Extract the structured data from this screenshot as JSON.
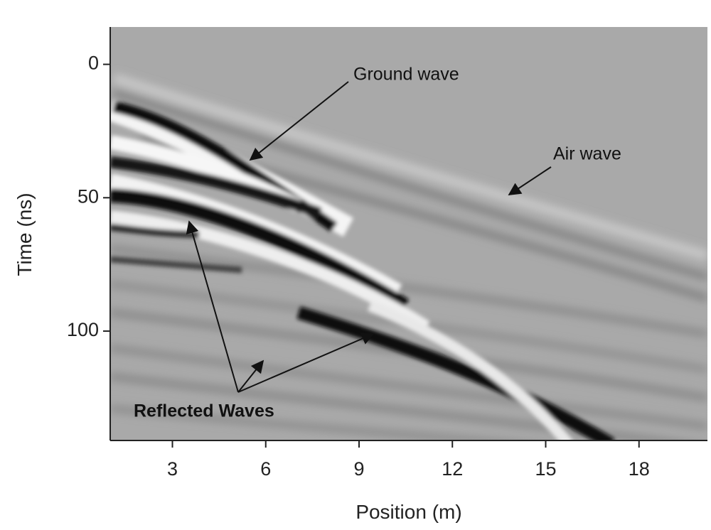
{
  "chart_data": {
    "type": "radargram",
    "xlabel": "Position (m)",
    "ylabel": "Time (ns)",
    "xlim": [
      1,
      20.2
    ],
    "xticks": [
      3,
      6,
      9,
      12,
      15,
      18
    ],
    "ylim": [
      141,
      -14
    ],
    "yticks": [
      0,
      50,
      100
    ],
    "annotations": [
      {
        "text": "Ground wave"
      },
      {
        "text": "Air wave"
      },
      {
        "text": "Reflected Waves"
      }
    ]
  }
}
